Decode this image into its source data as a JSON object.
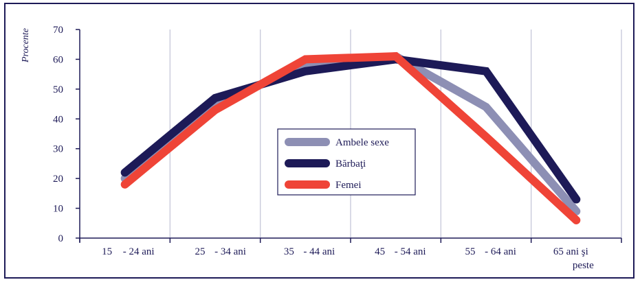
{
  "chart_data": {
    "type": "line",
    "ylabel": "Procente",
    "ylim": [
      0,
      70
    ],
    "yticks": [
      0,
      10,
      20,
      30,
      40,
      50,
      60,
      70
    ],
    "grid": true,
    "legend_position": "center",
    "categories": [
      [
        "15",
        "- 24 ani"
      ],
      [
        "25",
        "- 34 ani"
      ],
      [
        "35",
        "- 44 ani"
      ],
      [
        "45",
        "- 54 ani"
      ],
      [
        "55",
        "- 64 ani"
      ],
      [
        "65 ani şi",
        "peste"
      ]
    ],
    "series": [
      {
        "name": "Ambele sexe",
        "color": "#8d8fb4",
        "values": [
          20,
          45,
          58,
          61,
          44,
          9
        ]
      },
      {
        "name": "Bărbaţi",
        "color": "#1d1a57",
        "values": [
          22,
          47,
          56,
          60,
          56,
          13
        ]
      },
      {
        "name": "Femei",
        "color": "#ef4437",
        "values": [
          18,
          43,
          60,
          61,
          34,
          6
        ]
      }
    ]
  }
}
